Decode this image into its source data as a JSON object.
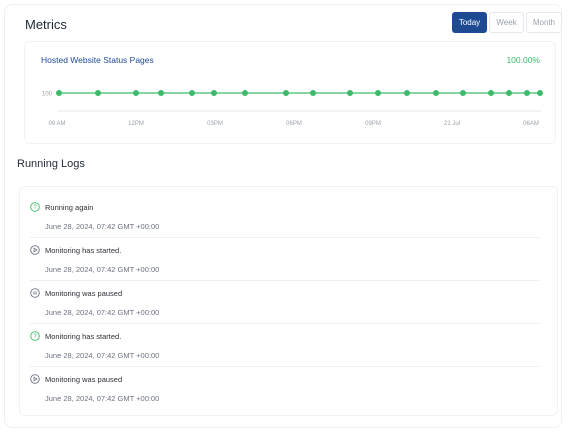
{
  "header": {
    "title": "Metrics",
    "ranges": [
      "Today",
      "Week",
      "Month"
    ],
    "active_range": "Today"
  },
  "chart": {
    "title": "Hosted Website Status Pages",
    "percentage": "100.00%"
  },
  "chart_data": {
    "type": "line",
    "title": "Hosted Website Status Pages",
    "xlabel": "",
    "ylabel": "",
    "x_tick_labels": [
      "09 AM",
      "12PM",
      "03PM",
      "06PM",
      "09PM",
      "21 Jul",
      "06AM"
    ],
    "y_tick_labels": [
      "100"
    ],
    "series": [
      {
        "values": [
          100,
          100,
          100,
          100,
          100,
          100,
          100,
          100,
          100,
          100,
          100,
          100,
          100,
          100,
          100,
          100,
          100,
          100
        ]
      }
    ],
    "ylim": [
      0,
      100
    ],
    "grid": false,
    "color": "#3cba6a"
  },
  "logs": {
    "title": "Running Logs",
    "items": [
      {
        "icon": "question-circle-icon",
        "text": "Running again",
        "time": "June 28, 2024, 07:42 GMT +00:00",
        "color": "#3cba6a"
      },
      {
        "icon": "play-circle-icon",
        "text": "Monitoring has started.",
        "time": "June 28, 2024, 07:42 GMT +00:00",
        "color": "#6b7280"
      },
      {
        "icon": "pause-circle-icon",
        "text": "Monitoring was paused",
        "time": "June 28, 2024, 07:42 GMT +00:00",
        "color": "#6b7280"
      },
      {
        "icon": "question-circle-icon",
        "text": "Monitoring has started.",
        "time": "June 28, 2024, 07:42 GMT +00:00",
        "color": "#3cba6a"
      },
      {
        "icon": "play-circle-icon",
        "text": "Monitoring was paused",
        "time": "June 28, 2024, 07:42 GMT +00:00",
        "color": "#6b7280"
      }
    ]
  }
}
